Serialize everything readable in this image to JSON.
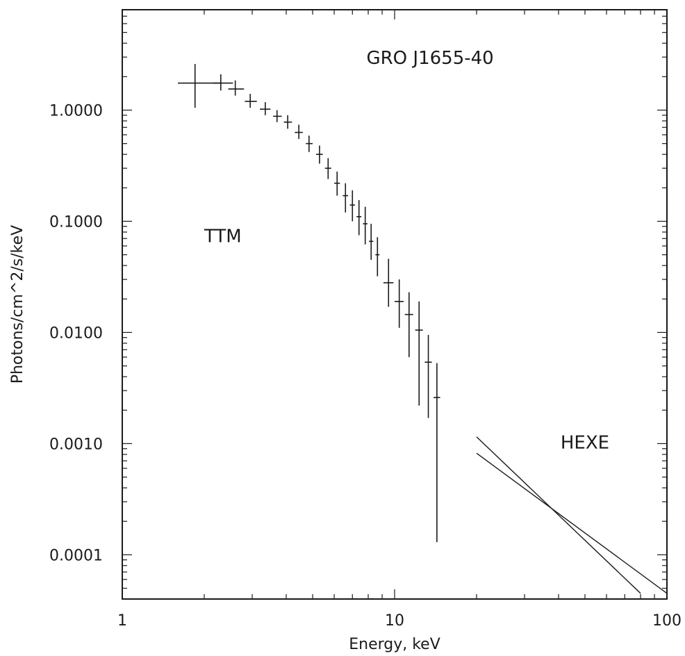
{
  "chart_data": {
    "type": "scatter",
    "title": "",
    "xlabel": "Energy, keV",
    "ylabel": "Photons/cm^2/s/keV",
    "xscale": "log",
    "yscale": "log",
    "xlim": [
      1,
      100
    ],
    "ylim": [
      4e-05,
      8
    ],
    "grid": false,
    "x_tick_labels": [
      {
        "value": 1,
        "label": "1"
      },
      {
        "value": 10,
        "label": "10"
      },
      {
        "value": 100,
        "label": "100"
      }
    ],
    "y_tick_labels": [
      {
        "value": 1,
        "label": "1.0000"
      },
      {
        "value": 0.1,
        "label": "0.1000"
      },
      {
        "value": 0.01,
        "label": "0.0100"
      },
      {
        "value": 0.001,
        "label": "0.0010"
      },
      {
        "value": 0.0001,
        "label": "0.0001"
      }
    ],
    "annotations": [
      {
        "text": "GRO J1655-40",
        "x": 13.5,
        "y": 2.6
      },
      {
        "text": "TTM",
        "x": 2.0,
        "y": 0.065
      },
      {
        "text": "HEXE",
        "x": 50,
        "y": 0.0009
      }
    ],
    "series": [
      {
        "name": "TTM",
        "style": "errorbar",
        "points": [
          {
            "x": 1.85,
            "y": 1.75,
            "xerr": [
              1.6,
              2.3
            ],
            "yerr": [
              1.05,
              2.6
            ]
          },
          {
            "x": 2.3,
            "y": 1.75,
            "xerr": [
              2.15,
              2.55
            ],
            "yerr": [
              1.5,
              2.1
            ]
          },
          {
            "x": 2.6,
            "y": 1.55,
            "xerr": [
              2.45,
              2.8
            ],
            "yerr": [
              1.35,
              1.85
            ]
          },
          {
            "x": 2.95,
            "y": 1.2,
            "xerr": [
              2.82,
              3.12
            ],
            "yerr": [
              1.05,
              1.4
            ]
          },
          {
            "x": 3.35,
            "y": 1.02,
            "xerr": [
              3.2,
              3.5
            ],
            "yerr": [
              0.9,
              1.18
            ]
          },
          {
            "x": 3.7,
            "y": 0.88,
            "xerr": [
              3.58,
              3.85
            ],
            "yerr": [
              0.78,
              1.0
            ]
          },
          {
            "x": 4.05,
            "y": 0.78,
            "xerr": [
              3.92,
              4.2
            ],
            "yerr": [
              0.68,
              0.9
            ]
          },
          {
            "x": 4.45,
            "y": 0.63,
            "xerr": [
              4.3,
              4.6
            ],
            "yerr": [
              0.55,
              0.74
            ]
          },
          {
            "x": 4.85,
            "y": 0.5,
            "xerr": [
              4.72,
              5.0
            ],
            "yerr": [
              0.42,
              0.59
            ]
          },
          {
            "x": 5.3,
            "y": 0.4,
            "xerr": [
              5.15,
              5.45
            ],
            "yerr": [
              0.33,
              0.48
            ]
          },
          {
            "x": 5.7,
            "y": 0.3,
            "xerr": [
              5.55,
              5.85
            ],
            "yerr": [
              0.24,
              0.37
            ]
          },
          {
            "x": 6.15,
            "y": 0.22,
            "xerr": [
              6.0,
              6.3
            ],
            "yerr": [
              0.17,
              0.28
            ]
          },
          {
            "x": 6.6,
            "y": 0.17,
            "xerr": [
              6.45,
              6.75
            ],
            "yerr": [
              0.12,
              0.22
            ]
          },
          {
            "x": 7.0,
            "y": 0.14,
            "xerr": [
              6.85,
              7.15
            ],
            "yerr": [
              0.1,
              0.19
            ]
          },
          {
            "x": 7.4,
            "y": 0.11,
            "xerr": [
              7.25,
              7.55
            ],
            "yerr": [
              0.075,
              0.155
            ]
          },
          {
            "x": 7.8,
            "y": 0.095,
            "xerr": [
              7.65,
              7.95
            ],
            "yerr": [
              0.062,
              0.135
            ]
          },
          {
            "x": 8.2,
            "y": 0.066,
            "xerr": [
              8.05,
              8.35
            ],
            "yerr": [
              0.045,
              0.095
            ]
          },
          {
            "x": 8.65,
            "y": 0.05,
            "xerr": [
              8.5,
              8.8
            ],
            "yerr": [
              0.032,
              0.072
            ]
          },
          {
            "x": 9.5,
            "y": 0.028,
            "xerr": [
              9.1,
              9.9
            ],
            "yerr": [
              0.017,
              0.046
            ]
          },
          {
            "x": 10.4,
            "y": 0.019,
            "xerr": [
              10.0,
              10.8
            ],
            "yerr": [
              0.011,
              0.03
            ]
          },
          {
            "x": 11.3,
            "y": 0.0145,
            "xerr": [
              10.9,
              11.7
            ],
            "yerr": [
              0.006,
              0.023
            ]
          },
          {
            "x": 12.3,
            "y": 0.0105,
            "xerr": [
              11.9,
              12.7
            ],
            "yerr": [
              0.0022,
              0.019
            ]
          },
          {
            "x": 13.3,
            "y": 0.0054,
            "xerr": [
              12.9,
              13.7
            ],
            "yerr": [
              0.0017,
              0.0095
            ]
          },
          {
            "x": 14.3,
            "y": 0.0026,
            "xerr": [
              13.9,
              14.7
            ],
            "yerr": [
              0.00013,
              0.0053
            ]
          }
        ]
      },
      {
        "name": "HEXE",
        "style": "lines",
        "lines": [
          {
            "x": [
              20,
              80
            ],
            "y": [
              0.00115,
              4.5e-05
            ]
          },
          {
            "x": [
              20,
              100
            ],
            "y": [
              0.00082,
              4.5e-05
            ]
          }
        ]
      }
    ]
  }
}
